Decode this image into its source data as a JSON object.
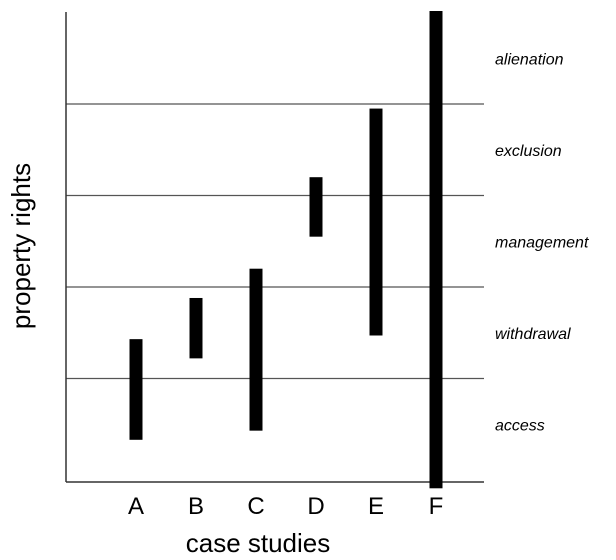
{
  "chart_data": {
    "type": "range-bar",
    "xlabel": "case studies",
    "ylabel": "property rights",
    "categories": [
      "A",
      "B",
      "C",
      "D",
      "E",
      "F"
    ],
    "bands": [
      "access",
      "withdrawal",
      "management",
      "exclusion",
      "alienation"
    ],
    "ylim": [
      0,
      5
    ],
    "grid": true,
    "ranges": [
      {
        "category": "A",
        "low": 0.33,
        "high": 1.43
      },
      {
        "category": "B",
        "low": 1.22,
        "high": 1.88
      },
      {
        "category": "C",
        "low": 0.43,
        "high": 2.2
      },
      {
        "category": "D",
        "low": 2.55,
        "high": 3.2
      },
      {
        "category": "E",
        "low": 1.47,
        "high": 3.95
      },
      {
        "category": "F",
        "low": -0.2,
        "high": 5.3
      }
    ]
  },
  "colors": {
    "bar": "#000000",
    "grid": "#555555",
    "axis": "#333333"
  }
}
